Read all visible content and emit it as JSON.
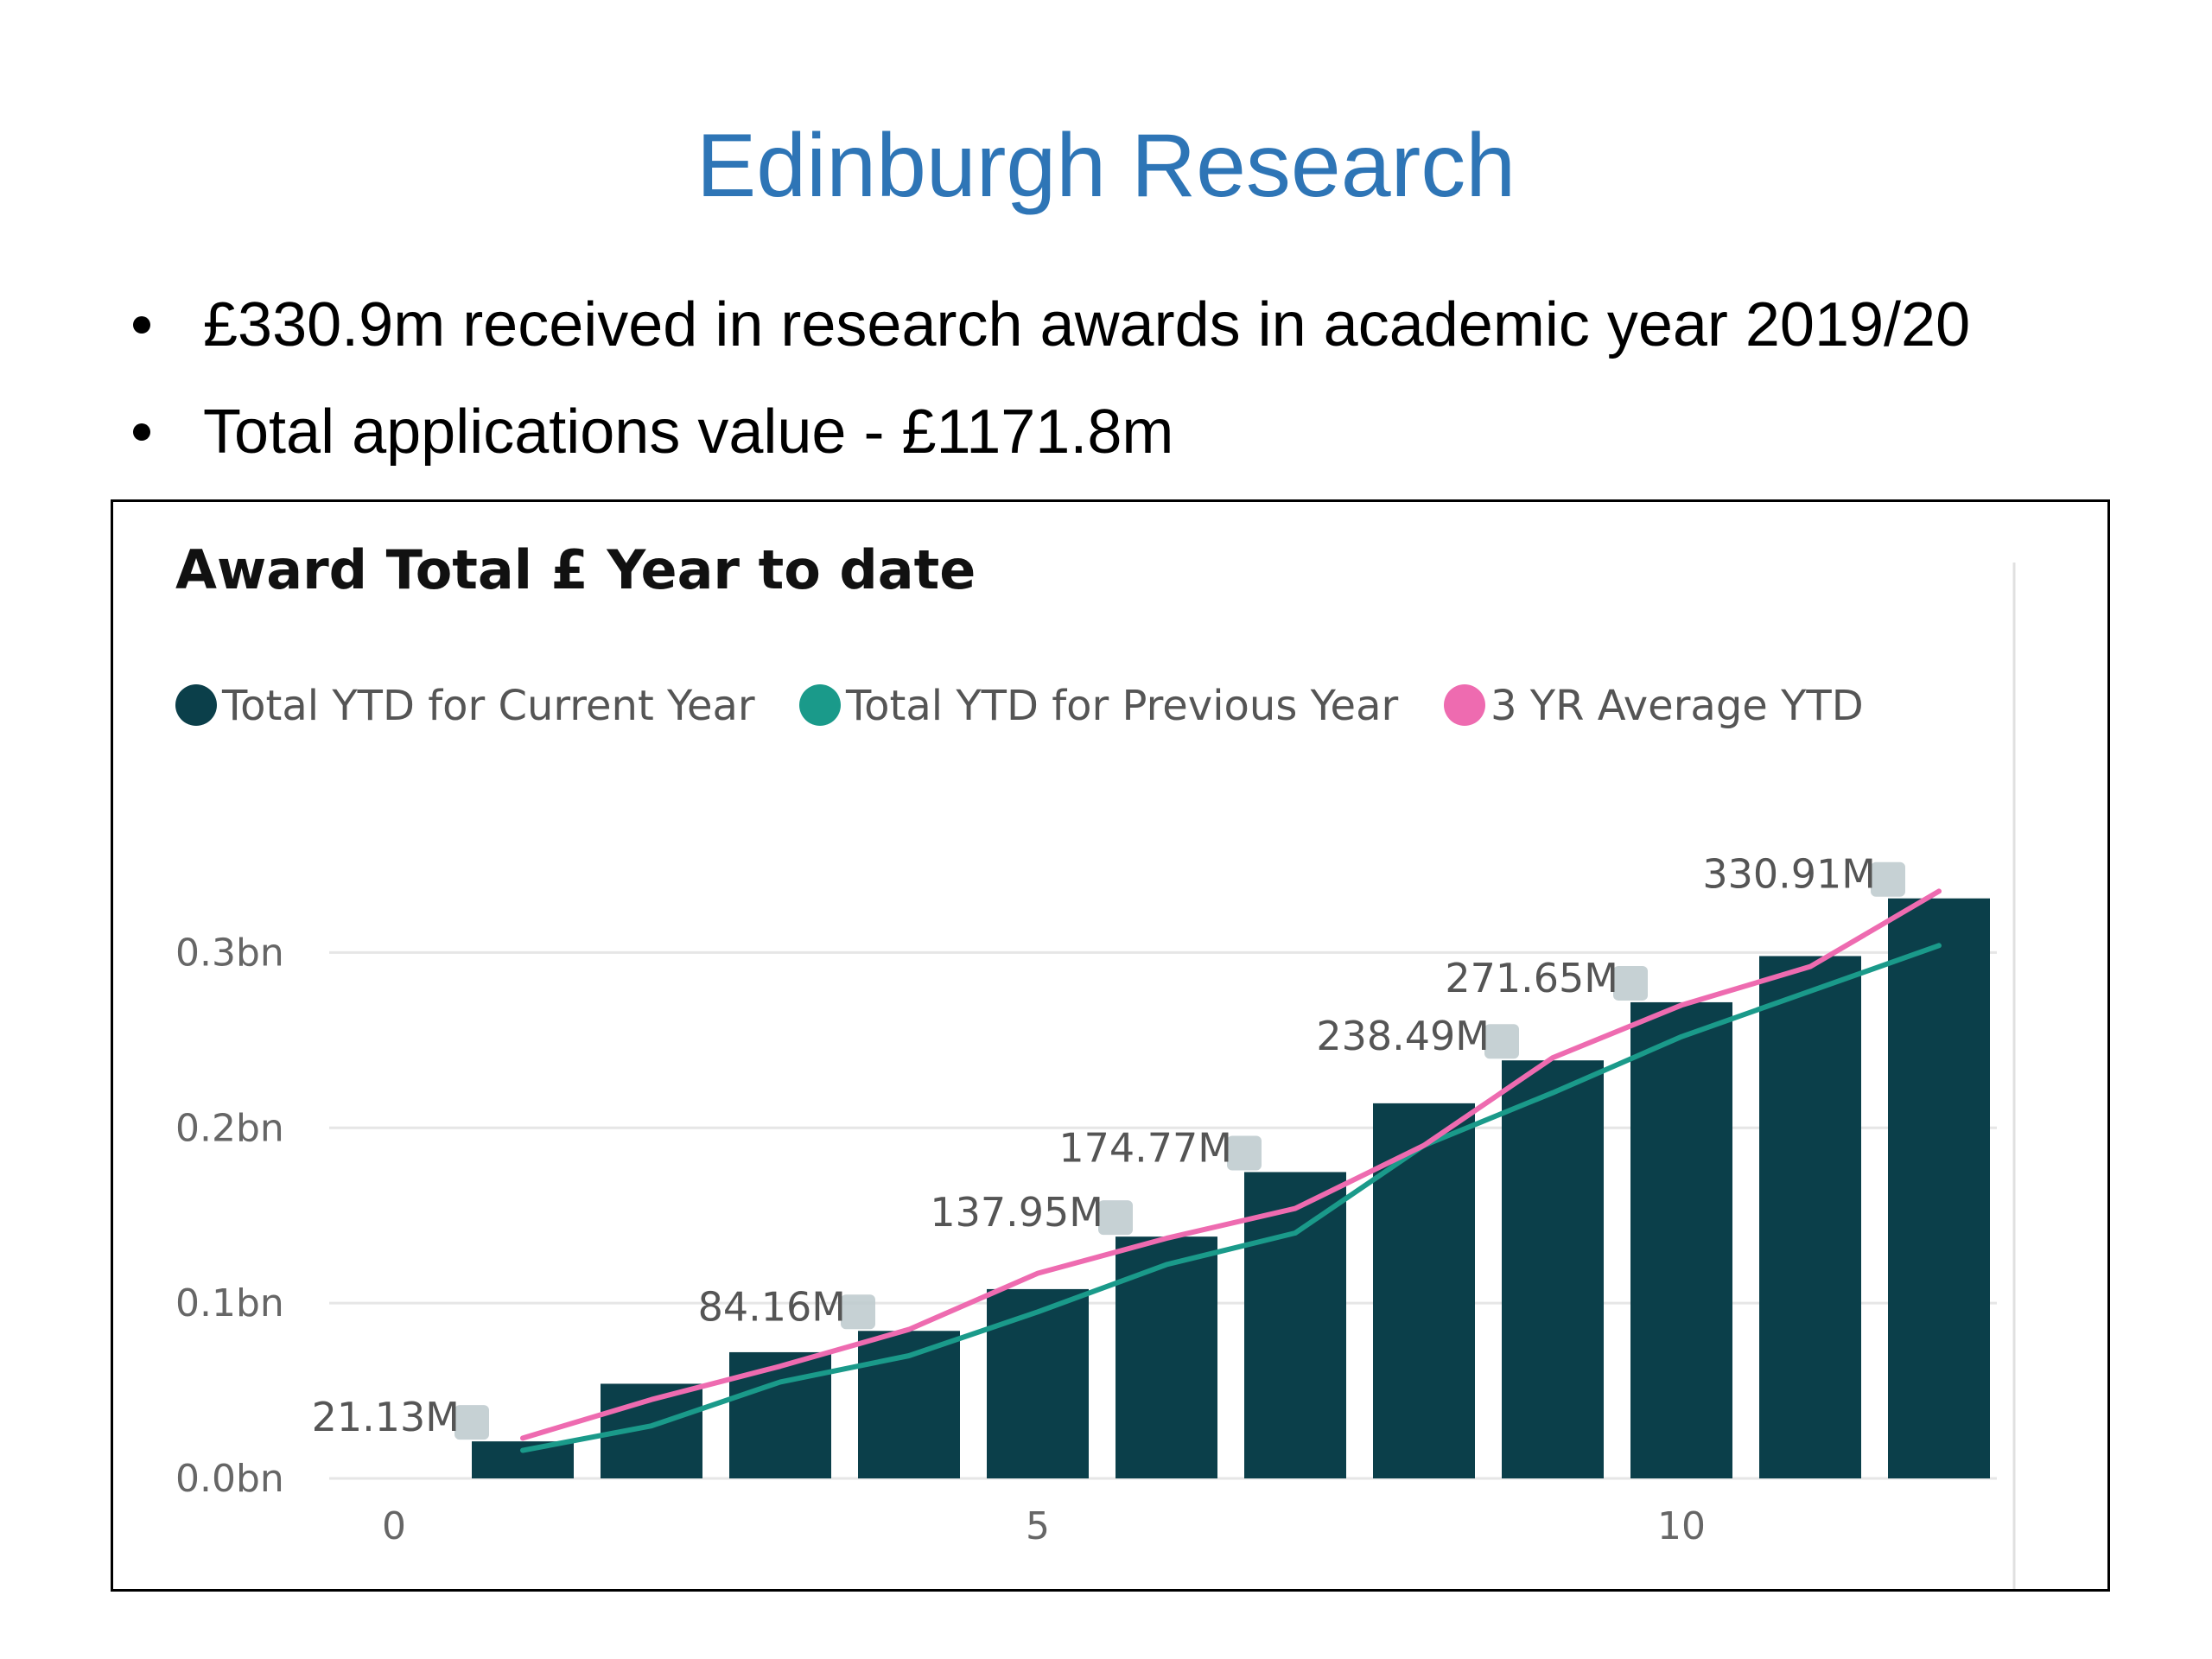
{
  "slide": {
    "title": "Edinburgh Research",
    "bullets": [
      "£330.9m received in research awards in academic year 2019/20",
      "Total applications value - £1171.8m"
    ]
  },
  "colors": {
    "title": "#2E75B6",
    "current_year": "#0B3F4A",
    "previous_year": "#1A9A8A",
    "three_yr_avg": "#EE6BB0",
    "gridline": "#E6E6E6"
  },
  "chart_data": {
    "type": "bar",
    "title": "Award Total £ Year to date",
    "xlabel": "",
    "ylabel": "",
    "x_ticks": [
      "0",
      "5",
      "10"
    ],
    "x_tick_values": [
      0,
      5,
      10
    ],
    "y_ticks": [
      "0.0bn",
      "0.1bn",
      "0.2bn",
      "0.3bn"
    ],
    "y_tick_values": [
      0,
      0.1,
      0.2,
      0.3
    ],
    "xlim": [
      0,
      12.5
    ],
    "ylim": [
      0,
      0.35
    ],
    "grid": true,
    "legend_position": "top-left",
    "x": [
      1,
      2,
      3,
      4,
      5,
      6,
      7,
      8,
      9,
      10,
      11,
      12
    ],
    "series": [
      {
        "name": "Total YTD for Current Year",
        "type": "bar",
        "values": [
          0.02113,
          0.054,
          0.072,
          0.08416,
          0.108,
          0.13795,
          0.17477,
          0.214,
          0.23849,
          0.27165,
          0.298,
          0.33091
        ]
      },
      {
        "name": "Total YTD for Previous Year",
        "type": "line",
        "values": [
          0.016,
          0.03,
          0.055,
          0.07,
          0.095,
          0.122,
          0.14,
          0.19,
          0.22,
          0.252,
          0.278,
          0.304
        ]
      },
      {
        "name": "3 YR Average YTD",
        "type": "line",
        "values": [
          0.023,
          0.045,
          0.064,
          0.085,
          0.117,
          0.137,
          0.154,
          0.19,
          0.24,
          0.27,
          0.292,
          0.335
        ]
      }
    ],
    "data_labels": [
      {
        "index": 0,
        "text": "21.13M"
      },
      {
        "index": 3,
        "text": "84.16M"
      },
      {
        "index": 5,
        "text": "137.95M"
      },
      {
        "index": 6,
        "text": "174.77M"
      },
      {
        "index": 8,
        "text": "238.49M"
      },
      {
        "index": 9,
        "text": "271.65M"
      },
      {
        "index": 11,
        "text": "330.91M"
      }
    ]
  }
}
